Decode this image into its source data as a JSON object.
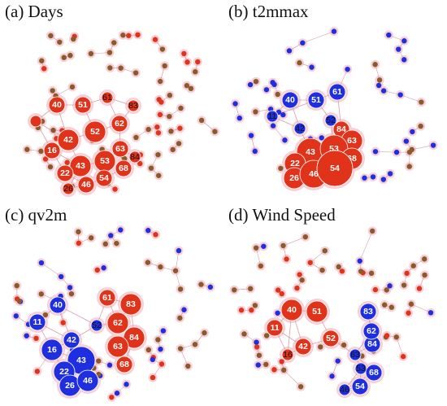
{
  "colors": {
    "red": "#e0331a",
    "blue": "#1f2fe0",
    "olive": "#8b5a2b",
    "halo": "#f7cfd6",
    "edge": "#d8a0a8"
  },
  "panels": [
    {
      "title": "(a) Days",
      "nodes": [
        {
          "id": "40",
          "color": "red",
          "size": "s",
          "labeled": true
        },
        {
          "id": "51",
          "color": "red",
          "size": "s",
          "labeled": true
        },
        {
          "id": "61",
          "color": "red",
          "size": "xs",
          "labeled": true
        },
        {
          "id": "83",
          "color": "red",
          "size": "xs",
          "labeled": true
        },
        {
          "id": "11",
          "color": "red",
          "size": "xs",
          "labeled": false
        },
        {
          "id": "52",
          "color": "red",
          "size": "m",
          "labeled": true
        },
        {
          "id": "42",
          "color": "red",
          "size": "m",
          "labeled": true
        },
        {
          "id": "62",
          "color": "red",
          "size": "s",
          "labeled": true
        },
        {
          "id": "16",
          "color": "red",
          "size": "s",
          "labeled": true
        },
        {
          "id": "63",
          "color": "red",
          "size": "s",
          "labeled": true
        },
        {
          "id": "43",
          "color": "red",
          "size": "m",
          "labeled": true
        },
        {
          "id": "53",
          "color": "red",
          "size": "m",
          "labeled": true
        },
        {
          "id": "84",
          "color": "red",
          "size": "xs",
          "labeled": true
        },
        {
          "id": "22",
          "color": "red",
          "size": "s",
          "labeled": true
        },
        {
          "id": "68",
          "color": "red",
          "size": "s",
          "labeled": true
        },
        {
          "id": "54",
          "color": "red",
          "size": "s",
          "labeled": true
        },
        {
          "id": "46",
          "color": "red",
          "size": "s",
          "labeled": true
        },
        {
          "id": "26",
          "color": "red",
          "size": "xs",
          "labeled": true
        }
      ]
    },
    {
      "title": "(b) t2mmax",
      "nodes": [
        {
          "id": "40",
          "color": "blue",
          "size": "s",
          "labeled": true
        },
        {
          "id": "51",
          "color": "blue",
          "size": "s",
          "labeled": true
        },
        {
          "id": "61",
          "color": "blue",
          "size": "s",
          "labeled": true
        },
        {
          "id": "11",
          "color": "blue",
          "size": "xs",
          "labeled": true
        },
        {
          "id": "42",
          "color": "blue",
          "size": "xs",
          "labeled": true
        },
        {
          "id": "52",
          "color": "blue",
          "size": "xs",
          "labeled": true
        },
        {
          "id": "84",
          "color": "red",
          "size": "s",
          "labeled": true
        },
        {
          "id": "63",
          "color": "red",
          "size": "m",
          "labeled": true
        },
        {
          "id": "43",
          "color": "red",
          "size": "l",
          "labeled": true
        },
        {
          "id": "53",
          "color": "red",
          "size": "l",
          "labeled": true
        },
        {
          "id": "22",
          "color": "red",
          "size": "m",
          "labeled": true
        },
        {
          "id": "68",
          "color": "red",
          "size": "m",
          "labeled": true
        },
        {
          "id": "26",
          "color": "red",
          "size": "m",
          "labeled": true
        },
        {
          "id": "46",
          "color": "red",
          "size": "l",
          "labeled": true
        },
        {
          "id": "54",
          "color": "red",
          "size": "xl",
          "labeled": true
        }
      ]
    },
    {
      "title": "(c) qv2m",
      "nodes": [
        {
          "id": "61",
          "color": "red",
          "size": "s",
          "labeled": true
        },
        {
          "id": "83",
          "color": "red",
          "size": "m",
          "labeled": true
        },
        {
          "id": "40",
          "color": "blue",
          "size": "s",
          "labeled": true
        },
        {
          "id": "11",
          "color": "blue",
          "size": "s",
          "labeled": true
        },
        {
          "id": "52",
          "color": "blue",
          "size": "xs",
          "labeled": true
        },
        {
          "id": "62",
          "color": "red",
          "size": "m",
          "labeled": true
        },
        {
          "id": "42",
          "color": "blue",
          "size": "s",
          "labeled": true
        },
        {
          "id": "84",
          "color": "red",
          "size": "m",
          "labeled": true
        },
        {
          "id": "16",
          "color": "blue",
          "size": "m",
          "labeled": true
        },
        {
          "id": "63",
          "color": "red",
          "size": "m",
          "labeled": true
        },
        {
          "id": "43",
          "color": "blue",
          "size": "l",
          "labeled": true
        },
        {
          "id": "22",
          "color": "blue",
          "size": "m",
          "labeled": true
        },
        {
          "id": "68",
          "color": "red",
          "size": "s",
          "labeled": true
        },
        {
          "id": "26",
          "color": "blue",
          "size": "m",
          "labeled": true
        },
        {
          "id": "46",
          "color": "blue",
          "size": "m",
          "labeled": true
        }
      ]
    },
    {
      "title": "(d) Wind Speed",
      "nodes": [
        {
          "id": "40",
          "color": "red",
          "size": "m",
          "labeled": true
        },
        {
          "id": "51",
          "color": "red",
          "size": "m",
          "labeled": true
        },
        {
          "id": "83",
          "color": "blue",
          "size": "s",
          "labeled": true
        },
        {
          "id": "11",
          "color": "red",
          "size": "s",
          "labeled": true
        },
        {
          "id": "84",
          "color": "blue",
          "size": "s",
          "labeled": true
        },
        {
          "id": "52",
          "color": "red",
          "size": "s",
          "labeled": true
        },
        {
          "id": "62",
          "color": "blue",
          "size": "s",
          "labeled": true
        },
        {
          "id": "42",
          "color": "red",
          "size": "s",
          "labeled": true
        },
        {
          "id": "16",
          "color": "red",
          "size": "xs",
          "labeled": true
        },
        {
          "id": "63",
          "color": "blue",
          "size": "xs",
          "labeled": true
        },
        {
          "id": "53",
          "color": "blue",
          "size": "xs",
          "labeled": true
        },
        {
          "id": "68",
          "color": "blue",
          "size": "s",
          "labeled": true
        },
        {
          "id": "46",
          "color": "blue",
          "size": "xs",
          "labeled": true
        },
        {
          "id": "54",
          "color": "blue",
          "size": "s",
          "labeled": true
        }
      ]
    }
  ]
}
